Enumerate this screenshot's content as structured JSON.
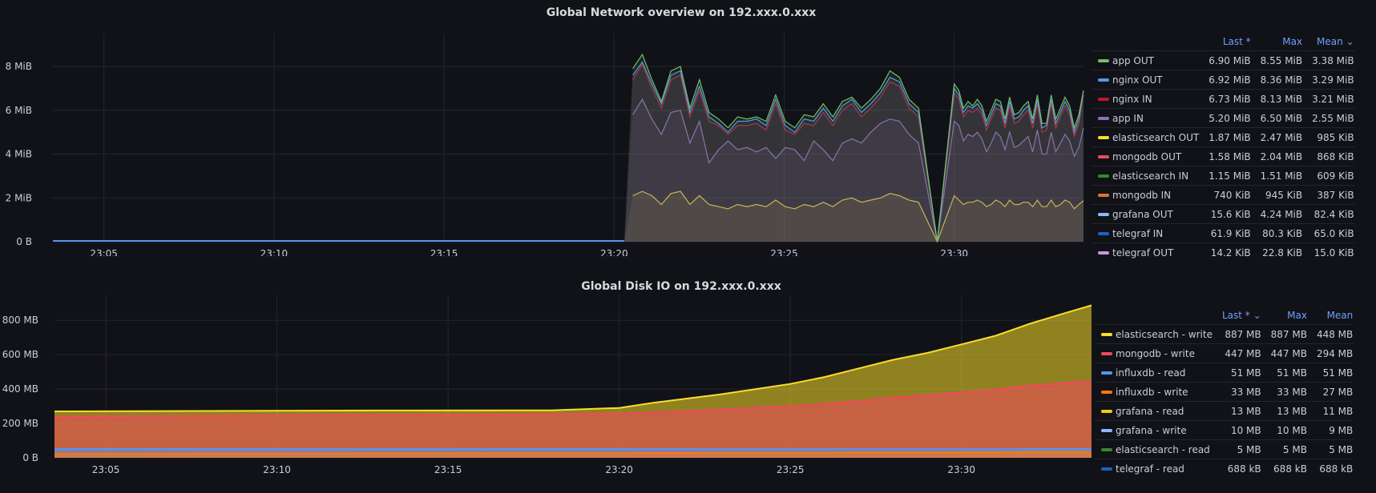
{
  "panels": [
    {
      "title": "Global Network overview on 192.xxx.0.xxx",
      "legend_headers": [
        "Last *",
        "Max",
        "Mean ⌄"
      ],
      "legend": [
        {
          "name": "app OUT",
          "color": "#73bf69",
          "last": "6.90 MiB",
          "max": "8.55 MiB",
          "mean": "3.38 MiB"
        },
        {
          "name": "nginx OUT",
          "color": "#5794f2",
          "last": "6.92 MiB",
          "max": "8.36 MiB",
          "mean": "3.29 MiB"
        },
        {
          "name": "nginx IN",
          "color": "#c4162a",
          "last": "6.73 MiB",
          "max": "8.13 MiB",
          "mean": "3.21 MiB"
        },
        {
          "name": "app IN",
          "color": "#8f6fc0",
          "last": "5.20 MiB",
          "max": "6.50 MiB",
          "mean": "2.55 MiB"
        },
        {
          "name": "elasticsearch OUT",
          "color": "#fade2a",
          "last": "1.87 MiB",
          "max": "2.47 MiB",
          "mean": "985 KiB"
        },
        {
          "name": "mongodb OUT",
          "color": "#f2495c",
          "last": "1.58 MiB",
          "max": "2.04 MiB",
          "mean": "868 KiB"
        },
        {
          "name": "elasticsearch IN",
          "color": "#37872d",
          "last": "1.15 MiB",
          "max": "1.51 MiB",
          "mean": "609 KiB"
        },
        {
          "name": "mongodb IN",
          "color": "#e0752d",
          "last": "740 KiB",
          "max": "945 KiB",
          "mean": "387 KiB"
        },
        {
          "name": "grafana OUT",
          "color": "#8ab8ff",
          "last": "15.6 KiB",
          "max": "4.24 MiB",
          "mean": "82.4 KiB"
        },
        {
          "name": "telegraf IN",
          "color": "#1f60c4",
          "last": "61.9 KiB",
          "max": "80.3 KiB",
          "mean": "65.0 KiB"
        },
        {
          "name": "telegraf OUT",
          "color": "#ca95e5",
          "last": "14.2 KiB",
          "max": "22.8 KiB",
          "mean": "15.0 KiB"
        }
      ]
    },
    {
      "title": "Global Disk IO on 192.xxx.0.xxx",
      "legend_headers": [
        "Last * ⌄",
        "Max",
        "Mean"
      ],
      "legend": [
        {
          "name": "elasticsearch - write",
          "color": "#fade2a",
          "last": "887 MB",
          "max": "887 MB",
          "mean": "448 MB"
        },
        {
          "name": "mongodb - write",
          "color": "#f2495c",
          "last": "447 MB",
          "max": "447 MB",
          "mean": "294 MB"
        },
        {
          "name": "influxdb - read",
          "color": "#5794f2",
          "last": "51 MB",
          "max": "51 MB",
          "mean": "51 MB"
        },
        {
          "name": "influxdb - write",
          "color": "#ff780a",
          "last": "33 MB",
          "max": "33 MB",
          "mean": "27 MB"
        },
        {
          "name": "grafana - read",
          "color": "#f2cc0c",
          "last": "13 MB",
          "max": "13 MB",
          "mean": "11 MB"
        },
        {
          "name": "grafana - write",
          "color": "#8ab8ff",
          "last": "10 MB",
          "max": "10 MB",
          "mean": "9 MB"
        },
        {
          "name": "elasticsearch - read",
          "color": "#37872d",
          "last": "5 MB",
          "max": "5 MB",
          "mean": "5 MB"
        },
        {
          "name": "telegraf - read",
          "color": "#1f60c4",
          "last": "688 kB",
          "max": "688 kB",
          "mean": "688 kB"
        }
      ]
    }
  ],
  "chart_data": [
    {
      "type": "area",
      "title": "Global Network overview on 192.xxx.0.xxx",
      "x_ticks": [
        "23:05",
        "23:10",
        "23:15",
        "23:20",
        "23:25",
        "23:30"
      ],
      "y_ticks": [
        "0 B",
        "2 MiB",
        "4 MiB",
        "6 MiB",
        "8 MiB"
      ],
      "x_range_min": [
        23.5,
        53.8
      ],
      "ylim_mib": [
        0,
        9.5
      ],
      "grid": true,
      "legend_placement": "right",
      "activity_windows_min": [
        [
          40.3,
          49.2
        ],
        [
          49.8,
          53.8
        ]
      ],
      "series": [
        {
          "name": "app OUT",
          "color": "#73bf69",
          "values_mib": [
            7.9,
            8.55,
            7.4,
            6.4,
            7.8,
            8.0,
            6.1,
            7.4,
            5.9,
            5.6,
            5.2,
            5.7,
            5.6,
            5.7,
            5.5,
            6.7,
            5.5,
            5.2,
            5.8,
            5.7,
            6.3,
            5.7,
            6.4,
            6.6,
            6.1,
            6.5,
            7.0,
            7.8,
            7.5,
            6.5,
            6.1,
            0,
            7.2,
            6.9,
            6.1,
            6.4,
            6.2,
            6.5,
            6.2,
            5.5,
            6.0,
            6.5,
            6.4,
            5.6,
            6.6,
            5.8,
            5.9,
            6.2,
            6.4,
            5.6,
            6.7,
            5.4,
            5.4,
            6.7,
            5.6,
            6.1,
            6.6,
            6.2,
            5.2,
            5.8,
            6.9
          ]
        },
        {
          "name": "nginx OUT",
          "color": "#5794f2",
          "values_mib": [
            7.6,
            8.2,
            7.2,
            6.3,
            7.6,
            7.8,
            5.9,
            7.1,
            5.7,
            5.4,
            5.0,
            5.5,
            5.5,
            5.6,
            5.3,
            6.5,
            5.3,
            5.0,
            5.6,
            5.5,
            6.1,
            5.5,
            6.2,
            6.5,
            5.9,
            6.3,
            6.8,
            7.5,
            7.3,
            6.3,
            5.9,
            0,
            7.0,
            6.7,
            5.9,
            6.2,
            6.1,
            6.3,
            6.0,
            5.3,
            5.8,
            6.3,
            6.2,
            5.4,
            6.4,
            5.6,
            5.7,
            6.0,
            6.2,
            5.4,
            6.5,
            5.2,
            5.3,
            6.5,
            5.4,
            5.9,
            6.4,
            6.0,
            5.0,
            5.6,
            6.9
          ]
        },
        {
          "name": "nginx IN",
          "color": "#c4162a",
          "values_mib": [
            7.4,
            8.1,
            7.0,
            6.1,
            7.4,
            7.6,
            5.7,
            6.9,
            5.5,
            5.3,
            4.9,
            5.3,
            5.3,
            5.4,
            5.1,
            6.3,
            5.1,
            4.9,
            5.4,
            5.3,
            5.9,
            5.3,
            6.0,
            6.3,
            5.7,
            6.1,
            6.6,
            7.3,
            7.1,
            6.1,
            5.7,
            0,
            6.8,
            6.5,
            5.7,
            6.0,
            5.9,
            6.1,
            5.8,
            5.1,
            5.6,
            6.1,
            6.0,
            5.2,
            6.2,
            5.4,
            5.5,
            5.8,
            6.0,
            5.2,
            6.3,
            5.0,
            5.1,
            6.3,
            5.2,
            5.7,
            6.2,
            5.8,
            4.8,
            5.4,
            6.7
          ]
        },
        {
          "name": "app IN",
          "color": "#8f6fc0",
          "values_mib": [
            5.8,
            6.5,
            5.6,
            4.9,
            5.9,
            6.0,
            4.5,
            5.5,
            3.6,
            4.2,
            4.6,
            4.2,
            4.3,
            4.1,
            4.3,
            3.8,
            4.3,
            4.2,
            3.7,
            4.6,
            4.2,
            3.7,
            4.5,
            4.7,
            4.5,
            5.0,
            5.4,
            5.6,
            5.5,
            4.9,
            4.5,
            0,
            5.5,
            5.3,
            4.6,
            4.9,
            4.8,
            5.0,
            4.7,
            4.1,
            4.5,
            5.0,
            4.8,
            4.2,
            5.0,
            4.3,
            4.4,
            4.6,
            4.8,
            4.1,
            5.1,
            4.0,
            4.0,
            5.0,
            4.1,
            4.5,
            4.9,
            4.6,
            3.9,
            4.3,
            5.2
          ]
        },
        {
          "name": "elasticsearch OUT",
          "color": "#fade2a",
          "values_mib": [
            2.1,
            2.3,
            2.1,
            1.7,
            2.2,
            2.3,
            1.7,
            2.1,
            1.7,
            1.6,
            1.5,
            1.7,
            1.6,
            1.7,
            1.6,
            1.9,
            1.6,
            1.5,
            1.7,
            1.6,
            1.8,
            1.6,
            1.9,
            2.0,
            1.8,
            1.9,
            2.0,
            2.2,
            2.1,
            1.9,
            1.8,
            0,
            2.1,
            1.9,
            1.7,
            1.8,
            1.8,
            1.9,
            1.8,
            1.6,
            1.7,
            1.9,
            1.8,
            1.6,
            1.9,
            1.7,
            1.7,
            1.8,
            1.8,
            1.6,
            1.9,
            1.6,
            1.6,
            1.9,
            1.6,
            1.7,
            1.9,
            1.8,
            1.5,
            1.7,
            1.87
          ]
        }
      ]
    },
    {
      "type": "area",
      "title": "Global Disk IO on 192.xxx.0.xxx",
      "x_ticks": [
        "23:05",
        "23:10",
        "23:15",
        "23:20",
        "23:25",
        "23:30"
      ],
      "y_ticks": [
        "0 B",
        "200 MB",
        "400 MB",
        "600 MB",
        "800 MB"
      ],
      "ylim_mb": [
        0,
        950
      ],
      "grid": true,
      "legend_placement": "right",
      "x_min": [
        23.5,
        33,
        38,
        40,
        41,
        42,
        43,
        44,
        45,
        46,
        47,
        48,
        49,
        50,
        51,
        52,
        53,
        53.8
      ],
      "series": [
        {
          "name": "elasticsearch - write",
          "color": "#fade2a",
          "values_mb": [
            270,
            275,
            276,
            290,
            320,
            345,
            370,
            400,
            430,
            470,
            520,
            570,
            610,
            660,
            710,
            780,
            840,
            887
          ]
        },
        {
          "name": "mongodb - write",
          "color": "#f2495c",
          "values_mb": [
            240,
            250,
            252,
            258,
            265,
            272,
            282,
            292,
            300,
            315,
            330,
            350,
            365,
            380,
            398,
            420,
            435,
            447
          ]
        },
        {
          "name": "influxdb - read",
          "color": "#5794f2",
          "values_mb": [
            51,
            51,
            51,
            51,
            51,
            51,
            51,
            51,
            51,
            51,
            51,
            51,
            51,
            51,
            51,
            51,
            51,
            51
          ]
        },
        {
          "name": "influxdb - write",
          "color": "#ff780a",
          "values_mb": [
            22,
            26,
            27,
            27,
            28,
            28,
            29,
            29,
            30,
            30,
            31,
            31,
            31,
            32,
            32,
            33,
            33,
            33
          ]
        }
      ]
    }
  ]
}
